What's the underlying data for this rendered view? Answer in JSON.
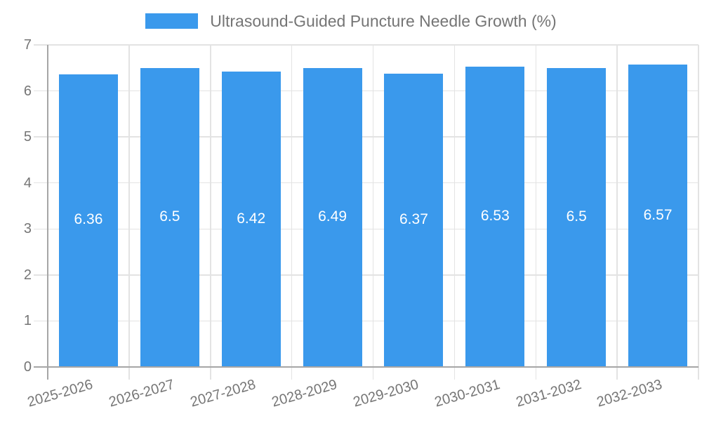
{
  "chart_data": {
    "type": "bar",
    "title": "Ultrasound-Guided Puncture Needle Growth (%)",
    "legend": [
      "Ultrasound-Guided Puncture Needle Growth (%)"
    ],
    "legend_position": "top-center",
    "categories": [
      "2025-2026",
      "2026-2027",
      "2027-2028",
      "2028-2029",
      "2029-2030",
      "2030-2031",
      "2031-2032",
      "2032-2033"
    ],
    "series": [
      {
        "name": "Ultrasound-Guided Puncture Needle Growth (%)",
        "values": [
          6.36,
          6.5,
          6.42,
          6.49,
          6.37,
          6.53,
          6.5,
          6.57
        ]
      }
    ],
    "value_labels": [
      "6.36",
      "6.5",
      "6.42",
      "6.49",
      "6.37",
      "6.53",
      "6.5",
      "6.57"
    ],
    "xlabel": "",
    "ylabel": "",
    "ylim": [
      0,
      7
    ],
    "yticks": [
      0,
      1,
      2,
      3,
      4,
      5,
      6,
      7
    ],
    "grid": true,
    "x_tick_rotation_deg": -16
  },
  "colors": {
    "bar": "#3a99ec",
    "grid": "#e3e3e3",
    "axis": "#a6a6a6",
    "tick_text": "#757575",
    "value_text": "#ffffff"
  }
}
